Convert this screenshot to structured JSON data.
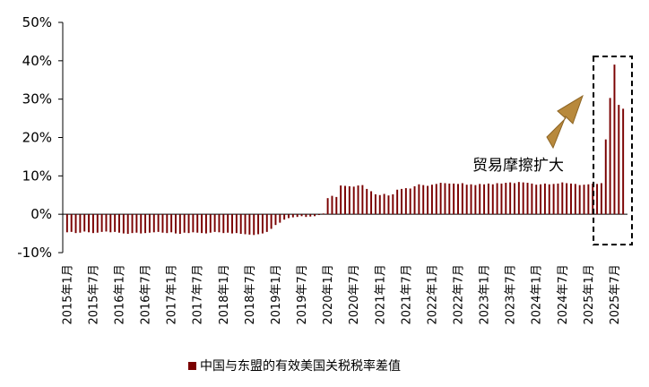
{
  "chart_data": {
    "type": "bar",
    "ylim": [
      -10,
      50
    ],
    "yticks": [
      "50%",
      "40%",
      "30%",
      "20%",
      "10%",
      "0%",
      "-10%"
    ],
    "ytick_values": [
      50,
      40,
      30,
      20,
      10,
      0,
      -10
    ],
    "x_tick_labels": [
      "2015年1月",
      "2015年7月",
      "2016年1月",
      "2016年7月",
      "2017年1月",
      "2017年7月",
      "2018年1月",
      "2018年7月",
      "2019年1月",
      "2019年7月",
      "2020年1月",
      "2020年7月",
      "2021年1月",
      "2021年7月",
      "2022年1月",
      "2022年7月",
      "2023年1月",
      "2023年7月",
      "2024年1月",
      "2024年7月",
      "2025年1月",
      "2025年7月"
    ],
    "start_month": "2015年1月",
    "series": [
      {
        "name": "中国与东盟的有效美国关税税率差值",
        "color": "#7a0000",
        "values": [
          -4.7,
          -4.6,
          -4.9,
          -4.8,
          -4.5,
          -4.7,
          -4.9,
          -4.8,
          -4.6,
          -4.5,
          -4.7,
          -4.6,
          -4.8,
          -5.0,
          -5.1,
          -4.9,
          -4.8,
          -5.0,
          -4.9,
          -4.8,
          -4.7,
          -4.6,
          -4.8,
          -4.9,
          -4.7,
          -5.0,
          -5.1,
          -4.8,
          -4.9,
          -4.7,
          -4.8,
          -4.9,
          -5.0,
          -4.8,
          -4.6,
          -4.7,
          -4.9,
          -4.8,
          -5.0,
          -4.9,
          -5.1,
          -5.2,
          -5.3,
          -5.4,
          -5.2,
          -5.0,
          -4.6,
          -3.8,
          -2.8,
          -2.2,
          -1.4,
          -1.0,
          -0.8,
          -0.7,
          -0.5,
          -0.7,
          -0.6,
          -0.5,
          -0.2,
          0.2,
          4.2,
          4.8,
          4.5,
          7.5,
          7.4,
          7.3,
          7.2,
          7.5,
          7.6,
          6.6,
          6.0,
          5.2,
          5.0,
          5.3,
          4.9,
          5.2,
          6.4,
          6.6,
          6.8,
          6.7,
          7.3,
          7.8,
          7.6,
          7.4,
          7.7,
          7.9,
          8.2,
          8.1,
          8.0,
          8.0,
          7.9,
          8.1,
          7.7,
          7.8,
          7.6,
          7.9,
          7.8,
          8.0,
          7.8,
          8.1,
          8.0,
          8.2,
          8.3,
          8.1,
          8.4,
          8.3,
          8.2,
          8.0,
          7.7,
          7.8,
          8.0,
          7.8,
          7.9,
          8.0,
          8.3,
          8.1,
          8.0,
          7.9,
          7.6,
          7.7,
          7.8,
          8.0,
          7.9,
          8.1,
          19.5,
          30.3,
          39.0,
          28.5,
          27.5
        ]
      }
    ],
    "annotation": "贸易摩擦扩大",
    "legend_label": "中国与东盟的有效美国关税税率差值",
    "legend_position": "bottom"
  }
}
